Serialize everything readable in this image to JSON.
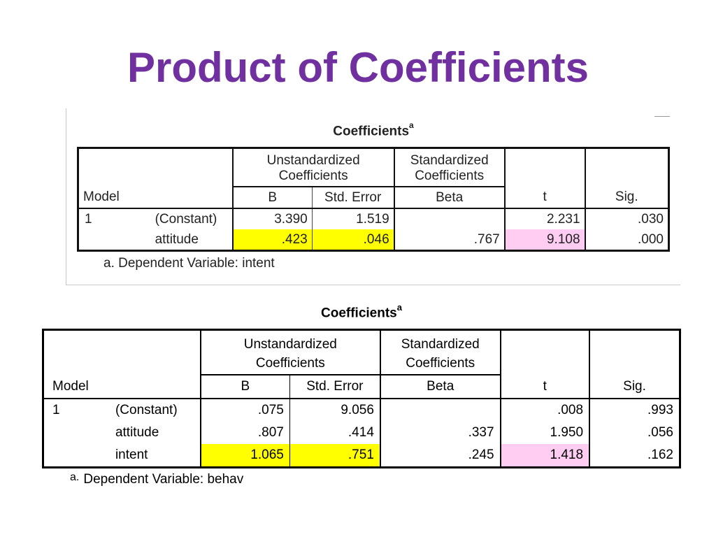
{
  "slide": {
    "title": "Product of Coefficients"
  },
  "table1": {
    "caption": "Coefficients",
    "caption_sup": "a",
    "group_unstd": [
      "Unstandardized",
      "Coefficients"
    ],
    "group_std": [
      "Standardized",
      "Coefficients"
    ],
    "model_header": "Model",
    "columns": [
      "B",
      "Std. Error",
      "Beta",
      "t",
      "Sig."
    ],
    "rows": [
      {
        "model": "1",
        "term": "(Constant)",
        "b": "3.390",
        "se": "1.519",
        "beta": "",
        "t": "2.231",
        "sig": ".030"
      },
      {
        "model": "",
        "term": "attitude",
        "b": ".423",
        "se": ".046",
        "beta": ".767",
        "t": "9.108",
        "sig": ".000"
      }
    ],
    "footnote": "a. Dependent Variable: intent",
    "highlight_yellow": "#ffff00",
    "highlight_pink": "#ffccf2"
  },
  "table2": {
    "caption": "Coefficients",
    "caption_sup": "a",
    "group_unstd": [
      "Unstandardized",
      "Coefficients"
    ],
    "group_std": [
      "Standardized",
      "Coefficients"
    ],
    "model_header": "Model",
    "columns": [
      "B",
      "Std. Error",
      "Beta",
      "t",
      "Sig."
    ],
    "rows": [
      {
        "model": "1",
        "term": "(Constant)",
        "b": ".075",
        "se": "9.056",
        "beta": "",
        "t": ".008",
        "sig": ".993"
      },
      {
        "model": "",
        "term": "attitude",
        "b": ".807",
        "se": ".414",
        "beta": ".337",
        "t": "1.950",
        "sig": ".056"
      },
      {
        "model": "",
        "term": "intent",
        "b": "1.065",
        "se": ".751",
        "beta": ".245",
        "t": "1.418",
        "sig": ".162"
      }
    ],
    "footnote_marker": "a.",
    "footnote": "Dependent Variable: behav"
  },
  "colors": {
    "title": "#7030a0",
    "highlight_yellow": "#ffff00",
    "highlight_pink": "#ffccf2"
  }
}
